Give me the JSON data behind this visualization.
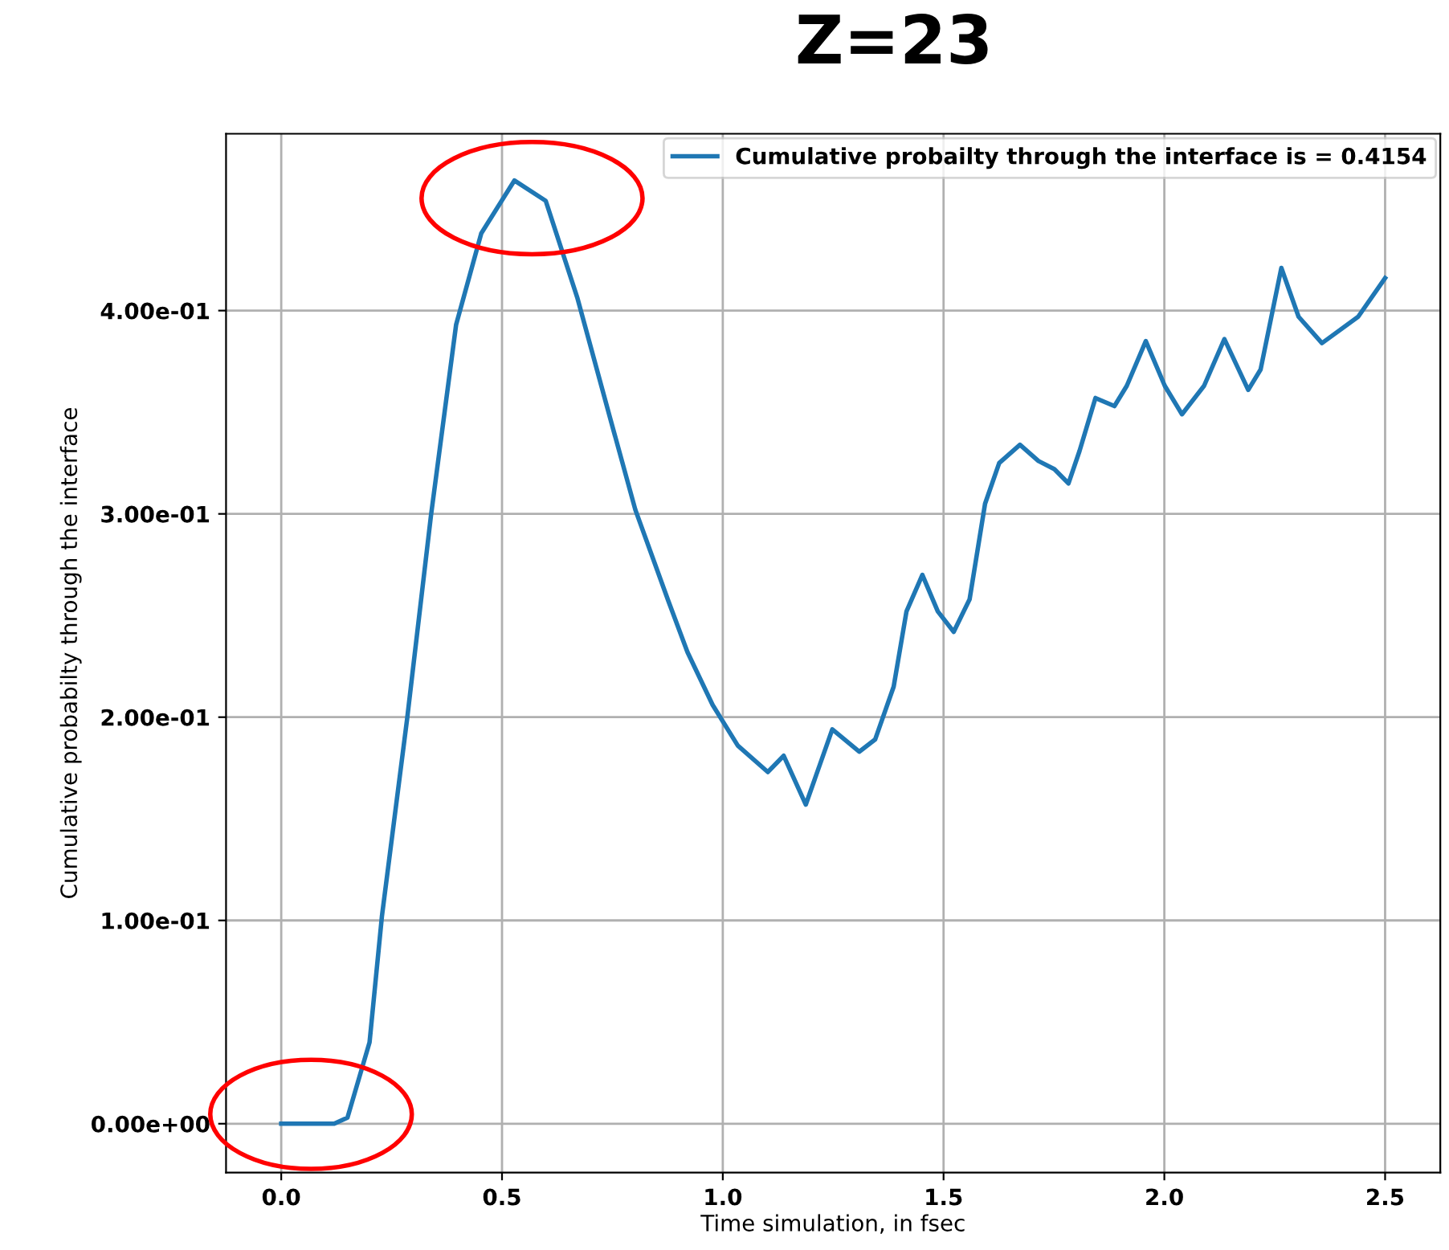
{
  "chart_data": {
    "type": "line",
    "title": "Z=23",
    "xlabel": "Time simulation, in fsec",
    "ylabel": "Cumulative probabilty through the interface",
    "x": [
      0,
      0.05,
      0.12,
      0.15,
      0.2,
      0.228,
      0.285,
      0.339,
      0.396,
      0.453,
      0.528,
      0.599,
      0.671,
      0.745,
      0.802,
      0.877,
      0.92,
      0.977,
      1.034,
      1.102,
      1.138,
      1.188,
      1.248,
      1.309,
      1.345,
      1.387,
      1.416,
      1.452,
      1.487,
      1.523,
      1.559,
      1.594,
      1.626,
      1.673,
      1.715,
      1.751,
      1.783,
      1.808,
      1.844,
      1.887,
      1.915,
      1.958,
      2.001,
      2.04,
      2.09,
      2.136,
      2.19,
      2.218,
      2.265,
      2.304,
      2.357,
      2.439,
      2.5
    ],
    "series": [
      {
        "name": "Cumulative probailty through the interface is = 0.4154",
        "color": "#1f77b4",
        "values": [
          0,
          0,
          0,
          0.003,
          0.04,
          0.102,
          0.199,
          0.299,
          0.393,
          0.438,
          0.464,
          0.454,
          0.406,
          0.347,
          0.302,
          0.257,
          0.232,
          0.206,
          0.186,
          0.173,
          0.181,
          0.157,
          0.194,
          0.183,
          0.189,
          0.215,
          0.252,
          0.27,
          0.252,
          0.242,
          0.258,
          0.305,
          0.325,
          0.334,
          0.326,
          0.322,
          0.315,
          0.331,
          0.357,
          0.353,
          0.363,
          0.385,
          0.363,
          0.349,
          0.363,
          0.386,
          0.361,
          0.371,
          0.421,
          0.397,
          0.384,
          0.397,
          0.416
        ]
      }
    ],
    "xlim": [
      -0.125,
      2.625
    ],
    "ylim": [
      -0.024,
      0.487
    ],
    "xticks": [
      {
        "value": 0,
        "label": "0.0"
      },
      0.5,
      {
        "value": 1,
        "label": "1.0"
      },
      1.5,
      {
        "value": 2,
        "label": "2.0"
      },
      2.5
    ],
    "yticks": [
      {
        "value": 0,
        "label": "0.00e+00"
      },
      {
        "value": 0.1,
        "label": "1.00e-01"
      },
      {
        "value": 0.2,
        "label": "2.00e-01"
      },
      {
        "value": 0.3,
        "label": "3.00e-01"
      },
      {
        "value": 0.4,
        "label": "4.00e-01"
      }
    ],
    "grid": true,
    "legend": "top right",
    "line_style": "solid",
    "marker": "none"
  }
}
